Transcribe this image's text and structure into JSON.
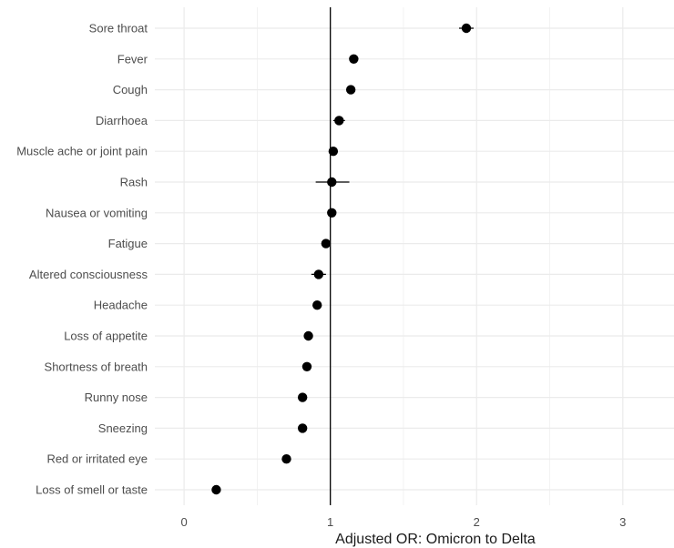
{
  "chart_data": {
    "type": "scatter",
    "subtype": "forest-plot",
    "title": "",
    "xlabel": "Adjusted OR: Omicron to Delta",
    "ylabel": "",
    "xlim": [
      -0.2,
      3.35
    ],
    "x_ticks": [
      0,
      1,
      2,
      3
    ],
    "reference_line_x": 1,
    "grid": true,
    "legend": "none",
    "categories": [
      "Sore throat",
      "Fever",
      "Cough",
      "Diarrhoea",
      "Muscle ache or joint pain",
      "Rash",
      "Nausea or vomiting",
      "Fatigue",
      "Altered consciousness",
      "Headache",
      "Loss of appetite",
      "Shortness of breath",
      "Runny nose",
      "Sneezing",
      "Red or irritated eye",
      "Loss of smell or taste"
    ],
    "series": [
      {
        "values": [
          1.93,
          1.16,
          1.14,
          1.06,
          1.02,
          1.01,
          1.01,
          0.97,
          0.92,
          0.91,
          0.85,
          0.84,
          0.81,
          0.81,
          0.7,
          0.22
        ],
        "ci_lower": [
          1.88,
          1.14,
          1.12,
          1.02,
          1.0,
          0.9,
          0.99,
          0.95,
          0.87,
          0.89,
          0.83,
          0.82,
          0.79,
          0.79,
          0.68,
          0.21
        ],
        "ci_upper": [
          1.98,
          1.18,
          1.16,
          1.1,
          1.04,
          1.13,
          1.03,
          0.99,
          0.97,
          0.93,
          0.87,
          0.86,
          0.83,
          0.83,
          0.72,
          0.23
        ]
      }
    ],
    "colors": {
      "point": "#000000",
      "ci": "#000000",
      "reference_line": "#000000",
      "grid": "#ebebeb",
      "tick_label": "#4d4d4d",
      "axis_title": "#1a1a1a"
    }
  }
}
